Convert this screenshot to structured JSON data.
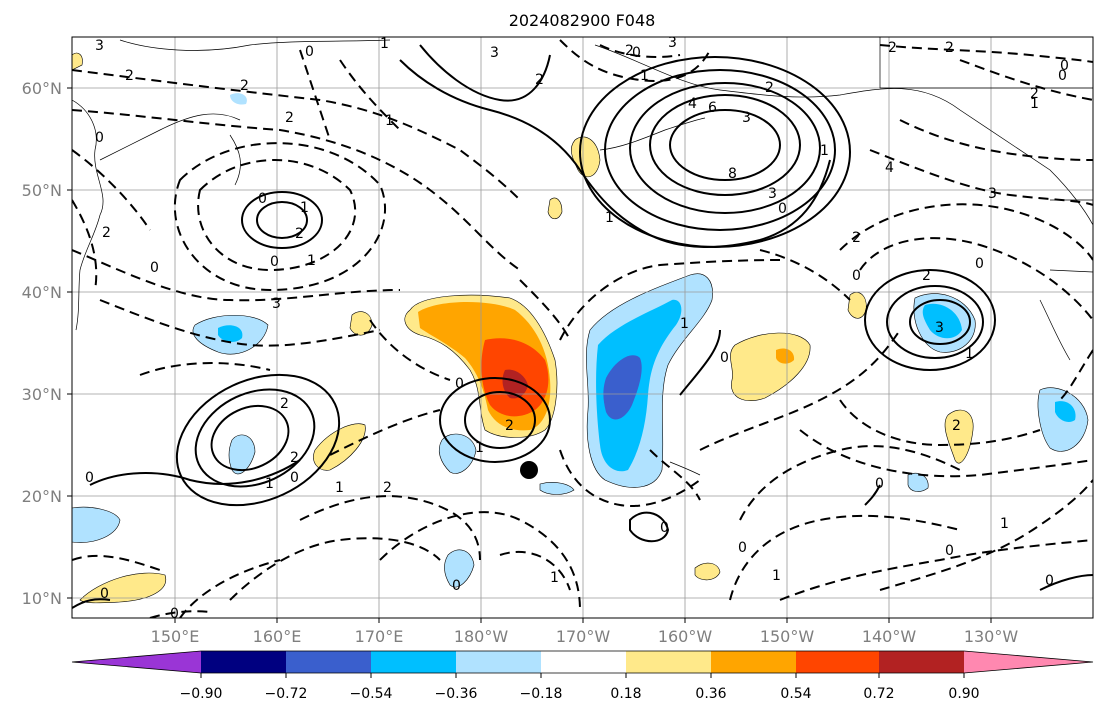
{
  "title": "2024082900 F048",
  "lat_labels": [
    "60°N",
    "50°N",
    "40°N",
    "30°N",
    "20°N",
    "10°N"
  ],
  "lon_labels": [
    "150°E",
    "160°E",
    "170°E",
    "180°W",
    "170°W",
    "160°W",
    "150°W",
    "140°W",
    "130°W"
  ],
  "colorbar": {
    "colors": [
      "#9a35d6",
      "#000080",
      "#3a5fcd",
      "#00bfff",
      "#b0e2ff",
      "#ffffff",
      "#ffe98a",
      "#ffa500",
      "#ff4500",
      "#b22222",
      "#ff88b0"
    ],
    "ticks": [
      "−0.90",
      "−0.72",
      "−0.54",
      "−0.36",
      "−0.18",
      "0.18",
      "0.36",
      "0.54",
      "0.72",
      "0.90"
    ]
  },
  "contour_labels": [
    "3",
    "0",
    "1",
    "2",
    "2",
    "0",
    "1",
    "1",
    "0",
    "2",
    "1",
    "2",
    "3",
    "3",
    "3",
    "0",
    "0",
    "1",
    "2",
    "0",
    "1",
    "4",
    "6",
    "8",
    "3",
    "3",
    "2",
    "0",
    "1",
    "2",
    "1",
    "0",
    "4",
    "3",
    "2",
    "0",
    "0",
    "2",
    "3",
    "1",
    "1",
    "0",
    "2",
    "1",
    "2",
    "2",
    "2",
    "0",
    "1",
    "0",
    "1",
    "0",
    "0",
    "0",
    "2",
    "1",
    "0",
    "0",
    "0",
    "1",
    "1",
    "0",
    "0",
    "0",
    "2",
    "2",
    "2",
    "2",
    "0"
  ],
  "marker": "center-dot"
}
